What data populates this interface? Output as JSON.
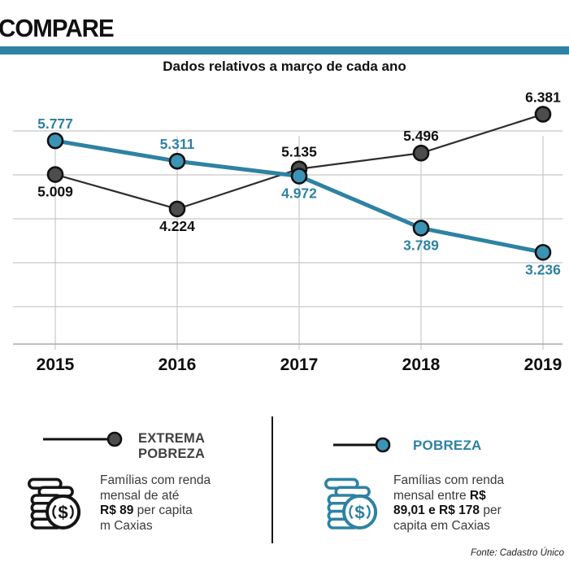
{
  "header": {
    "title": "COMPARE",
    "subtitle": "Dados relativos a março de cada ano"
  },
  "colors": {
    "accent": "#2e82a3",
    "accent_dot": "#3b93b5",
    "dark_line": "#2d2d2d",
    "dark_dot": "#4d4d4d",
    "label_dark": "#111111",
    "grid": "#c8c8c8",
    "axis": "#aaaaaa",
    "legend_title_gray": "#414141"
  },
  "chart_data": {
    "type": "line",
    "title": "Dados relativos a março de cada ano",
    "categories": [
      "2015",
      "2016",
      "2017",
      "2018",
      "2019"
    ],
    "series": [
      {
        "name": "EXTREMA POBREZA",
        "color": "#2d2d2d",
        "dot_color": "#4d4d4d",
        "label_color": "#111111",
        "line_width": 2.2,
        "values": [
          5009,
          4224,
          5135,
          5496,
          6381
        ],
        "labels": [
          "5.009",
          "4.224",
          "5.135",
          "5.496",
          "6.381"
        ],
        "label_side": [
          "below",
          "below",
          "above",
          "above",
          "above"
        ]
      },
      {
        "name": "POBREZA",
        "color": "#2e82a3",
        "dot_color": "#3b93b5",
        "label_color": "#2e82a3",
        "line_width": 5,
        "values": [
          5777,
          5311,
          4972,
          3789,
          3236
        ],
        "labels": [
          "5.777",
          "5.311",
          "4.972",
          "3.789",
          "3.236"
        ],
        "label_side": [
          "above",
          "above",
          "below",
          "below",
          "below"
        ]
      }
    ],
    "ylim": [
      1100,
      6900
    ],
    "gridline_values": [
      6000,
      5000,
      4000,
      3000,
      2000
    ],
    "grid": true,
    "legend_position": "bottom"
  },
  "legend": {
    "extrema": {
      "title_lines": [
        "EXTREMA",
        "POBREZA"
      ],
      "desc": [
        [
          {
            "t": "Famílias com renda"
          }
        ],
        [
          {
            "t": "mensal de até"
          }
        ],
        [
          {
            "t": "R$ 89",
            "b": true
          },
          {
            "t": " per capita"
          }
        ],
        [
          {
            "t": "m Caxias"
          }
        ]
      ]
    },
    "pobreza": {
      "title": "POBREZA",
      "desc": [
        [
          {
            "t": "Famílias com renda"
          }
        ],
        [
          {
            "t": "mensal entre "
          },
          {
            "t": "R$",
            "b": true
          }
        ],
        [
          {
            "t": "89,01 e R$ 178",
            "b": true
          },
          {
            "t": " per"
          }
        ],
        [
          {
            "t": "capita em Caxias"
          }
        ]
      ]
    }
  },
  "footer": {
    "source": "Fonte: Cadastro Único"
  }
}
